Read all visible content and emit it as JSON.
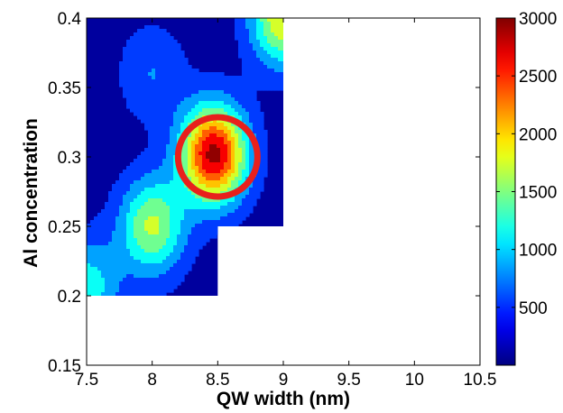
{
  "chart_data": {
    "type": "contour",
    "xlabel": "QW width (nm)",
    "ylabel": "Al concentration",
    "xlim": [
      7.5,
      10.5
    ],
    "ylim": [
      0.15,
      0.4
    ],
    "xticks": [
      "7.5",
      "8",
      "8.5",
      "9",
      "9.5",
      "10",
      "10.5"
    ],
    "yticks": [
      "0.15",
      "0.2",
      "0.25",
      "0.3",
      "0.35",
      "0.4"
    ],
    "colorbar": {
      "min": 0,
      "max": 3000,
      "ticks": [
        "500",
        "1000",
        "1500",
        "2000",
        "2500",
        "3000"
      ],
      "colormap": "jet"
    },
    "grid": false,
    "peaks": [
      {
        "x": 8.47,
        "y": 0.302,
        "value": 2900
      },
      {
        "x": 8.0,
        "y": 0.25,
        "value": 1650
      },
      {
        "x": 7.5,
        "y": 0.205,
        "value": 1200
      },
      {
        "x": 9.0,
        "y": 0.4,
        "value": 1900
      },
      {
        "x": 8.0,
        "y": 0.36,
        "value": 700
      }
    ],
    "data_region": [
      {
        "x": [
          7.5,
          8.5
        ],
        "y": [
          0.2,
          0.4
        ]
      },
      {
        "x": [
          8.5,
          9.0
        ],
        "y": [
          0.25,
          0.4
        ]
      }
    ],
    "highlight": {
      "shape": "circle",
      "x": 8.5,
      "y": 0.3,
      "color": "#e8201c"
    }
  }
}
